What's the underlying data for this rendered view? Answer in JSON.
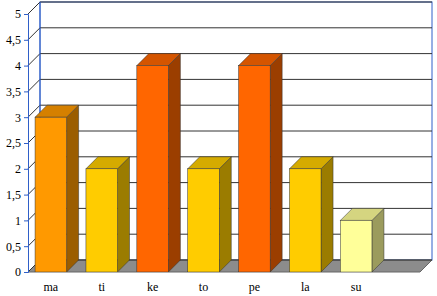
{
  "chart_data": {
    "type": "bar",
    "categories": [
      "ma",
      "ti",
      "ke",
      "to",
      "pe",
      "la",
      "su"
    ],
    "values": [
      3,
      2,
      4,
      2,
      4,
      2,
      1
    ],
    "colors": [
      "#ff9900",
      "#ffcc00",
      "#ff6600",
      "#ffcc00",
      "#ff6600",
      "#ffcc00",
      "#ffff99"
    ],
    "ylim": [
      0,
      5
    ],
    "yticks": [
      0,
      {
        "value": 0.5,
        "label": "0,5"
      },
      1,
      {
        "value": 1.5,
        "label": "1,5"
      },
      2,
      {
        "value": 2.5,
        "label": "2,5"
      },
      3,
      {
        "value": 3.5,
        "label": "3,5"
      },
      4,
      {
        "value": 4.5,
        "label": "4,5"
      },
      5
    ],
    "grid": true
  }
}
